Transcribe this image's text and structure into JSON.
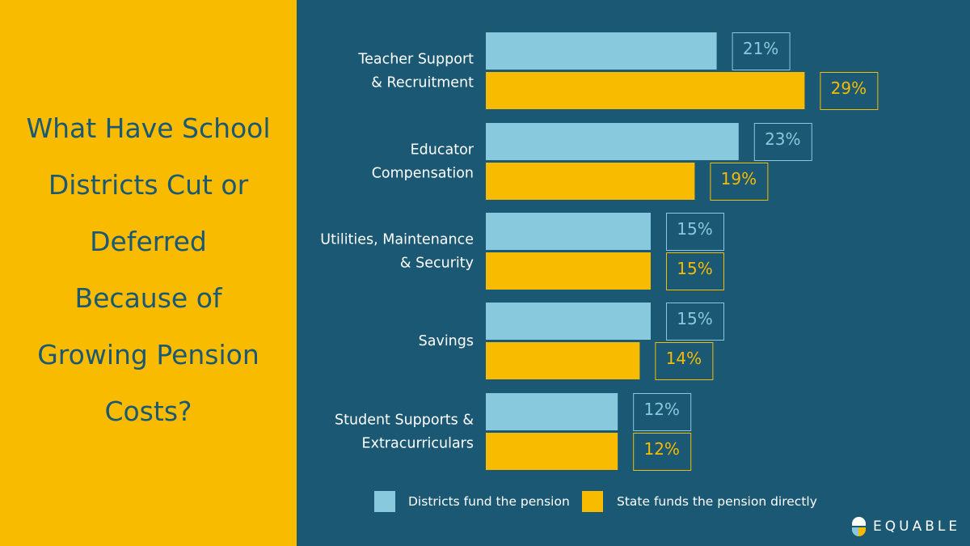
{
  "title_lines": [
    "What Have School",
    "Districts Cut or",
    "Deferred",
    "Because of",
    "Growing Pension",
    "Costs?"
  ],
  "logo": {
    "text": "EQUABLE",
    "icon": "equable-logo-icon"
  },
  "colors": {
    "background": "#1a5873",
    "left_panel": "#f8bb00",
    "districts": "#89c9dd",
    "state": "#f8bb00",
    "text": "#ffffff"
  },
  "chart_data": {
    "type": "bar",
    "orientation": "horizontal",
    "categories": [
      [
        "Teacher Support",
        "& Recruitment"
      ],
      [
        "Educator",
        "Compensation"
      ],
      [
        "Utilities, Maintenance",
        "& Security"
      ],
      [
        "Savings"
      ],
      [
        "Student Supports &",
        "Extracurriculars"
      ]
    ],
    "series": [
      {
        "name": "Districts fund the pension",
        "values": [
          21,
          23,
          15,
          15,
          12
        ],
        "labels": [
          "21%",
          "23%",
          "15%",
          "15%",
          "12%"
        ]
      },
      {
        "name": "State funds the pension directly",
        "values": [
          29,
          19,
          15,
          14,
          12
        ],
        "labels": [
          "29%",
          "19%",
          "15%",
          "14%",
          "12%"
        ]
      }
    ],
    "xlim": [
      0,
      29
    ],
    "grid": false,
    "legend_position": "bottom"
  }
}
